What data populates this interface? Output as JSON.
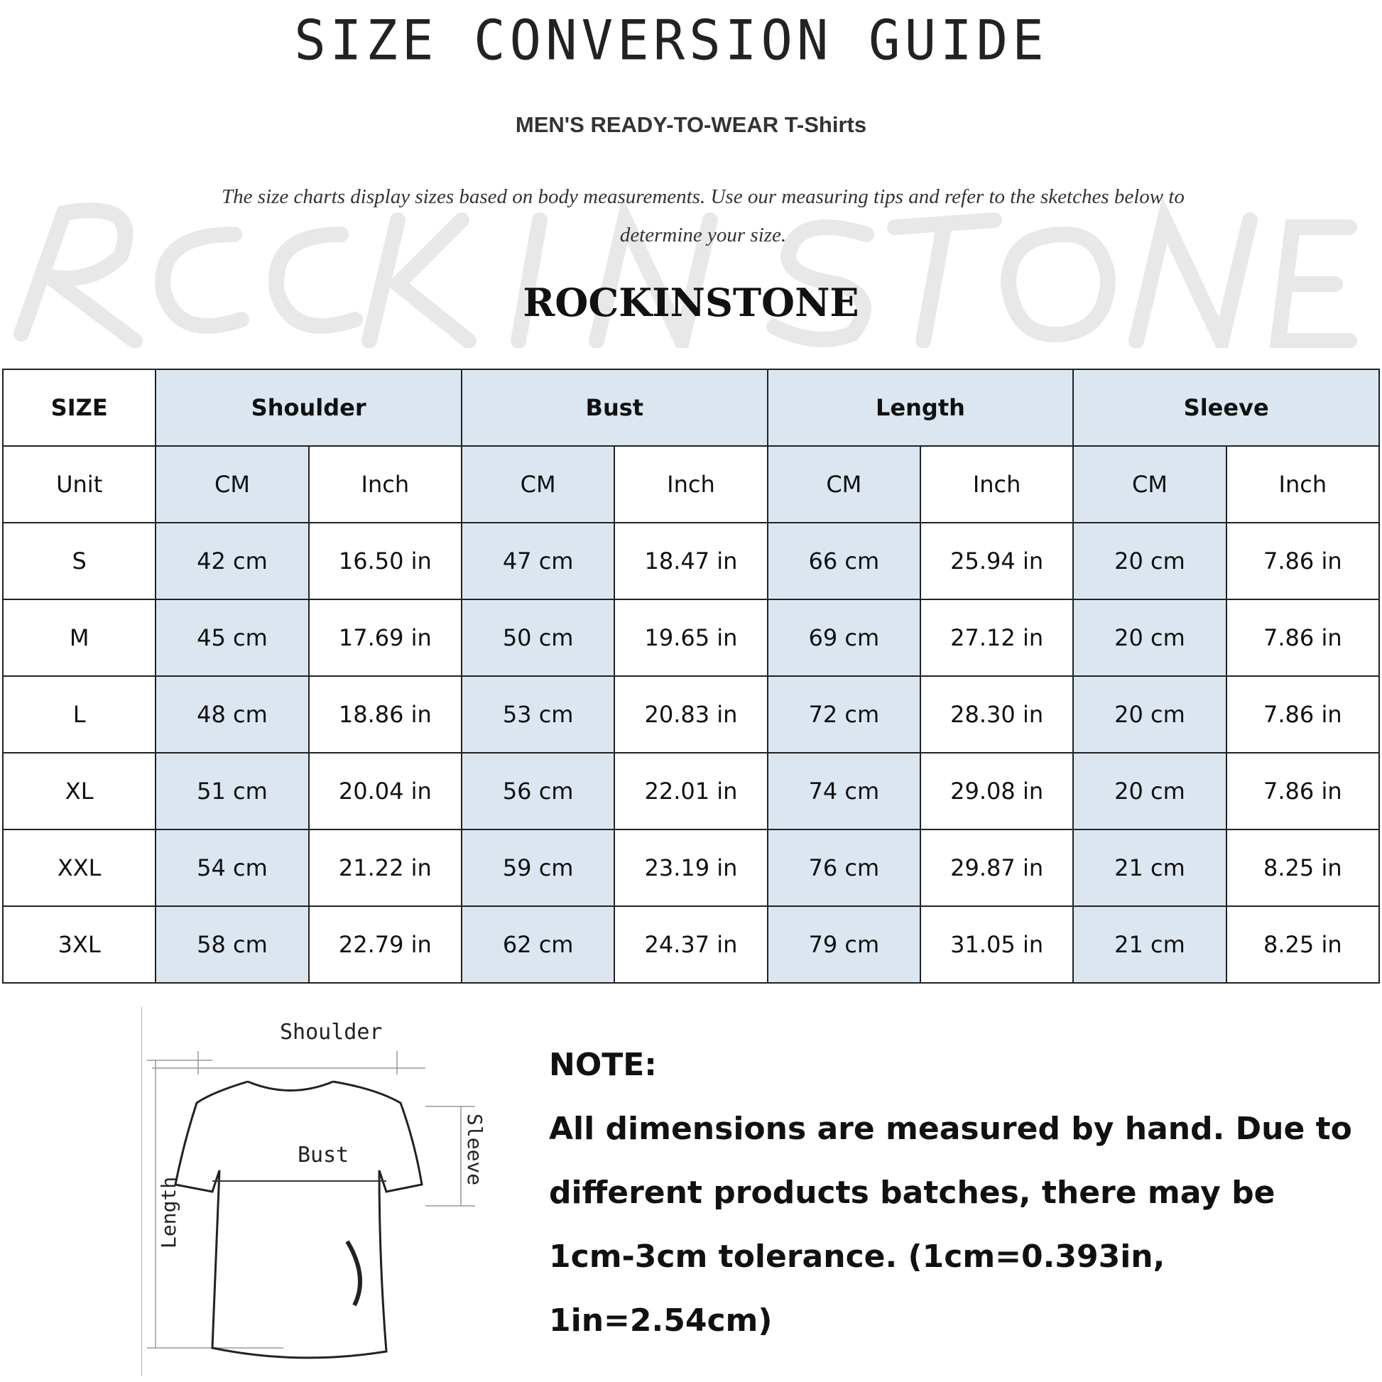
{
  "header": {
    "title": "SIZE CONVERSION GUIDE",
    "subtitle": "MEN'S READY-TO-WEAR T-Shirts",
    "intro": "The size charts display sizes based on body measurements. Use our measuring tips and refer to the sketches below to determine your size.",
    "watermark": "ROCKINSTONE",
    "brand": "ROCKINSTONE"
  },
  "table": {
    "size_header": "SIZE",
    "groups": [
      "Shoulder",
      "Bust",
      "Length",
      "Sleeve"
    ],
    "unit_label": "Unit",
    "units": [
      "CM",
      "Inch",
      "CM",
      "Inch",
      "CM",
      "Inch",
      "CM",
      "Inch"
    ],
    "rows": [
      {
        "size": "S",
        "values": [
          "42 cm",
          "16.50 in",
          "47 cm",
          "18.47 in",
          "66 cm",
          "25.94 in",
          "20 cm",
          "7.86 in"
        ]
      },
      {
        "size": "M",
        "values": [
          "45 cm",
          "17.69 in",
          "50 cm",
          "19.65 in",
          "69 cm",
          "27.12 in",
          "20 cm",
          "7.86 in"
        ]
      },
      {
        "size": "L",
        "values": [
          "48 cm",
          "18.86 in",
          "53 cm",
          "20.83 in",
          "72 cm",
          "28.30 in",
          "20 cm",
          "7.86 in"
        ]
      },
      {
        "size": "XL",
        "values": [
          "51 cm",
          "20.04 in",
          "56 cm",
          "22.01 in",
          "74 cm",
          "29.08 in",
          "20 cm",
          "7.86 in"
        ]
      },
      {
        "size": "XXL",
        "values": [
          "54 cm",
          "21.22 in",
          "59 cm",
          "23.19 in",
          "76 cm",
          "29.87 in",
          "21 cm",
          "8.25 in"
        ]
      },
      {
        "size": "3XL",
        "values": [
          "58 cm",
          "22.79 in",
          "62 cm",
          "24.37 in",
          "79 cm",
          "31.05 in",
          "21 cm",
          "8.25 in"
        ]
      }
    ],
    "colors": {
      "shade": "#dce6f1",
      "border": "#222222"
    }
  },
  "sketch": {
    "labels": {
      "shoulder": "Shoulder",
      "bust": "Bust",
      "length": "Length",
      "sleeve": "Sleeve"
    }
  },
  "note": {
    "heading": "NOTE:",
    "text": "All dimensions are measured by hand. Due to different products batches, there may be 1cm-3cm tolerance. (1cm=0.393in, 1in=2.54cm)"
  }
}
